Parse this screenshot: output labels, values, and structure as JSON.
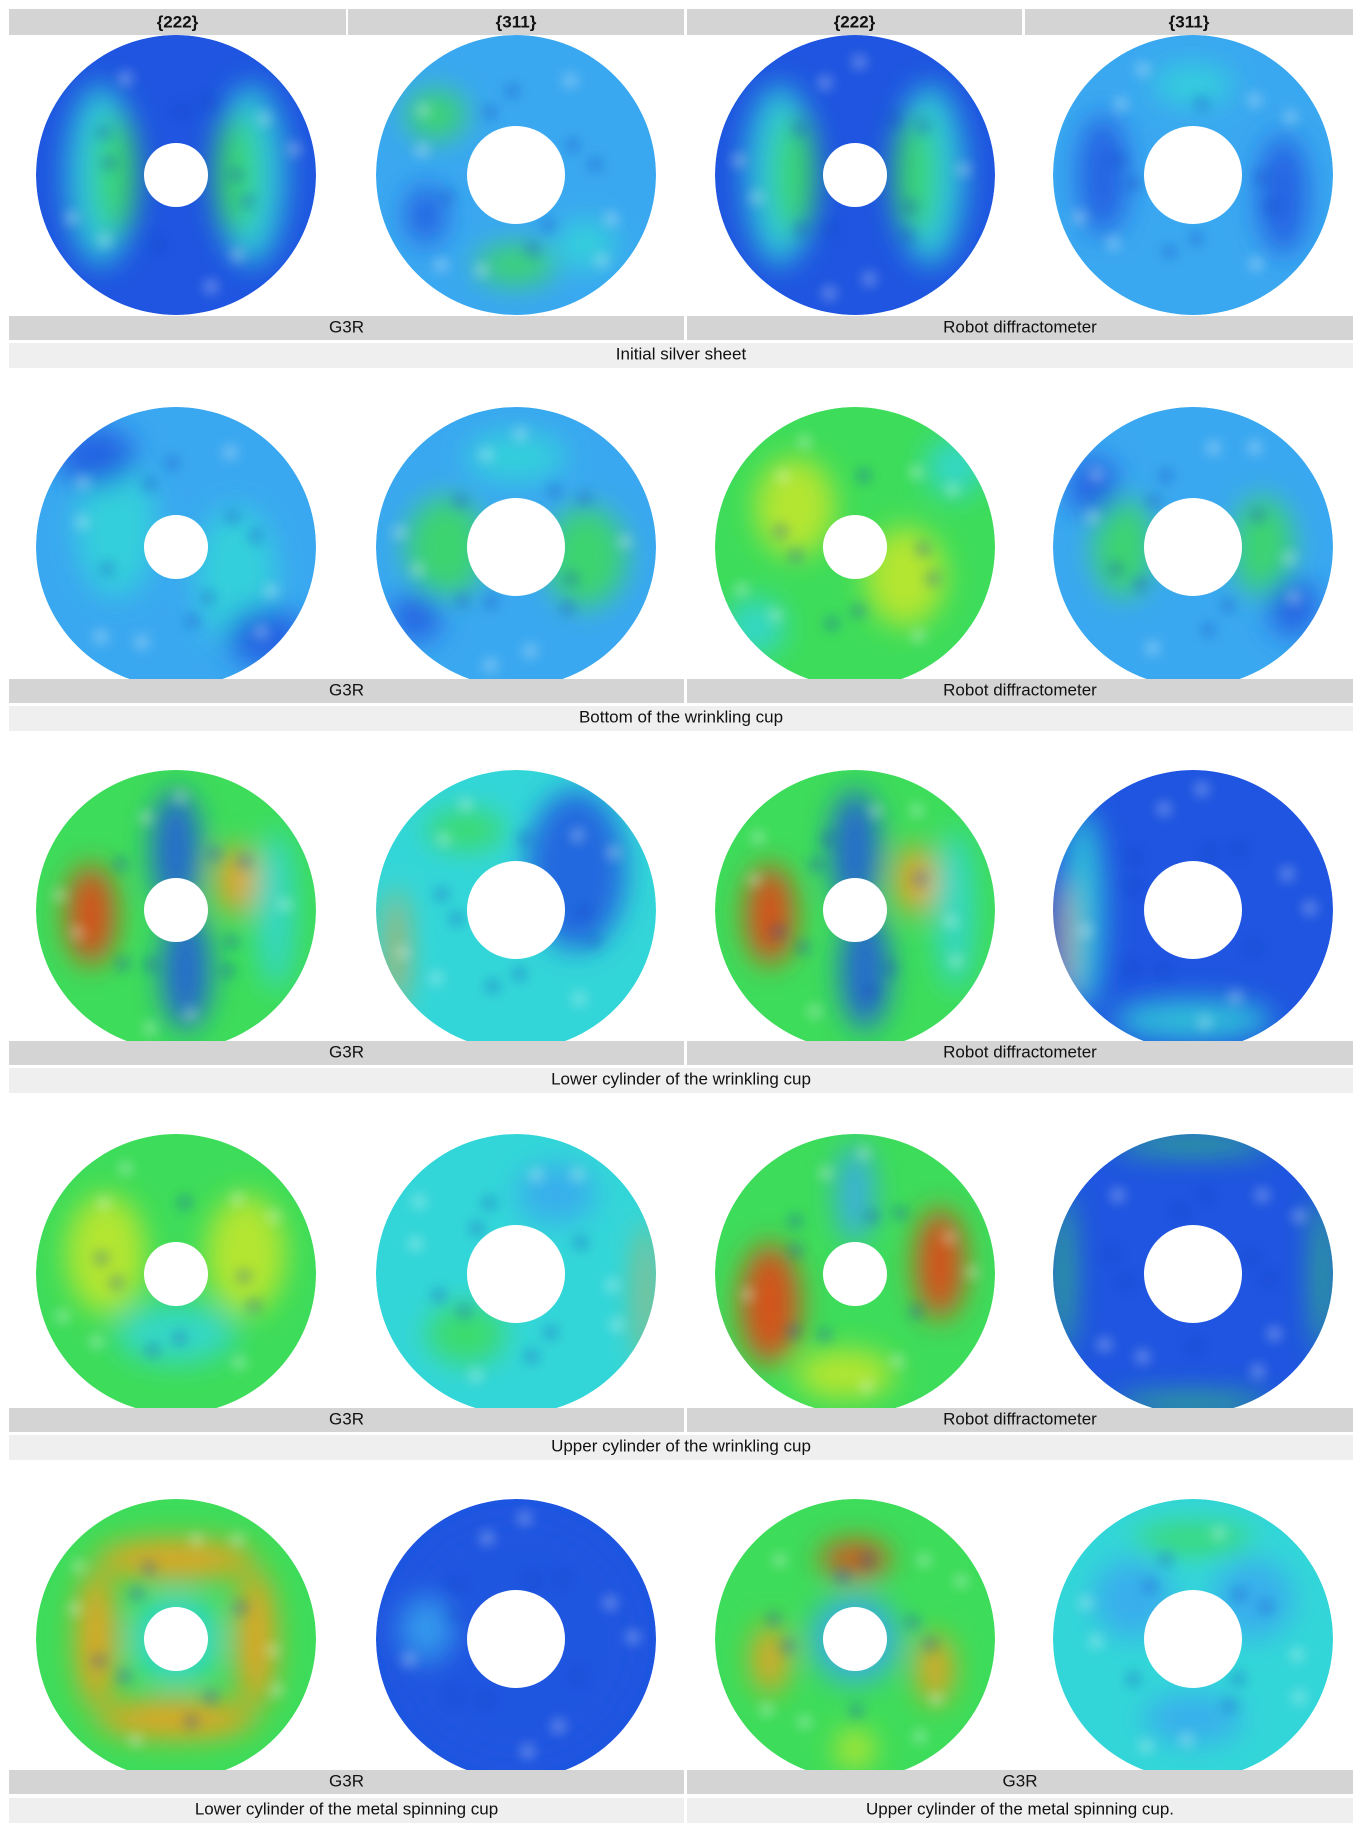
{
  "header": {
    "columns": [
      "{222}",
      "{311}",
      "{222}",
      "{311}"
    ]
  },
  "rows": [
    {
      "methods": [
        "G3R",
        "Robot diffractometer"
      ],
      "captions": [
        "Initial silver sheet"
      ]
    },
    {
      "methods": [
        "G3R",
        "Robot diffractometer"
      ],
      "captions": [
        "Bottom of the wrinkling cup"
      ]
    },
    {
      "methods": [
        "G3R",
        "Robot diffractometer"
      ],
      "captions": [
        "Lower cylinder of the wrinkling cup"
      ]
    },
    {
      "methods": [
        "G3R",
        "Robot diffractometer"
      ],
      "captions": [
        "Upper cylinder of the wrinkling cup"
      ]
    },
    {
      "methods": [
        "G3R",
        "G3R"
      ],
      "captions": [
        "Lower cylinder of the metal spinning cup",
        "Upper cylinder of the metal spinning cup."
      ]
    }
  ]
}
